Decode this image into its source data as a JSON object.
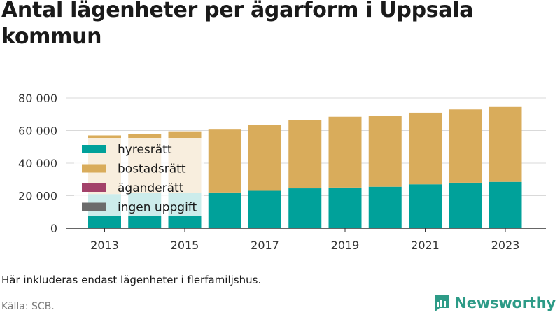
{
  "title": "Antal lägenheter per ägarform i Uppsala kommun",
  "footnote": "Här inkluderas endast lägenheter i flerfamiljshus.",
  "source": "Källa: SCB.",
  "brand": "Newsworthy",
  "colors": {
    "hyresratt": "#00a19a",
    "bostadsratt": "#d9ac5b",
    "aganderatt": "#a3426a",
    "ingen_uppgift": "#6b6b6b",
    "grid": "#d9d9d9",
    "brand": "#2d9b87"
  },
  "chart_data": {
    "type": "bar",
    "stacked": true,
    "categories": [
      "2013",
      "2014",
      "2015",
      "2016",
      "2017",
      "2018",
      "2019",
      "2020",
      "2021",
      "2022",
      "2023"
    ],
    "x_tick_labels": [
      "2013",
      "2015",
      "2017",
      "2019",
      "2021",
      "2023"
    ],
    "y_tick_labels": [
      "0",
      "20 000",
      "40 000",
      "60 000",
      "80 000"
    ],
    "ylim": [
      0,
      80000
    ],
    "grid": true,
    "legend_position": "top-left (inside plot)",
    "series": [
      {
        "name": "hyresrätt",
        "color": "#00a19a",
        "values": [
          21000,
          21500,
          21500,
          22000,
          23000,
          24500,
          25000,
          25500,
          27000,
          28000,
          28500
        ]
      },
      {
        "name": "bostadsrätt",
        "color": "#d9ac5b",
        "values": [
          36000,
          36500,
          38000,
          39000,
          40500,
          42000,
          43500,
          43500,
          44000,
          45000,
          46000
        ]
      },
      {
        "name": "äganderätt",
        "color": "#a3426a",
        "values": [
          0,
          0,
          0,
          0,
          0,
          0,
          0,
          0,
          0,
          0,
          0
        ]
      },
      {
        "name": "ingen uppgift",
        "color": "#6b6b6b",
        "values": [
          0,
          0,
          0,
          0,
          0,
          0,
          0,
          0,
          0,
          0,
          0
        ]
      }
    ]
  }
}
